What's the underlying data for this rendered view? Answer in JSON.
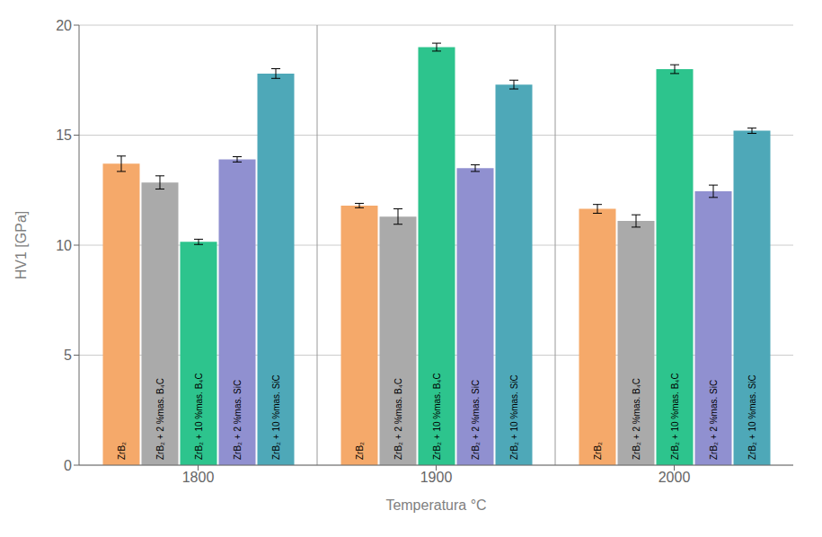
{
  "chart_data": {
    "type": "bar",
    "categories": [
      "1800",
      "1900",
      "2000"
    ],
    "series": [
      {
        "name": "ZrB₂",
        "color": "#F5A96A",
        "values": [
          13.7,
          11.8,
          11.65
        ],
        "errors": [
          0.35,
          0.1,
          0.2
        ]
      },
      {
        "name": "ZrB₂ + 2 %mas. B₄C",
        "color": "#AAAAAA",
        "values": [
          12.85,
          11.3,
          11.1
        ],
        "errors": [
          0.3,
          0.35,
          0.28
        ]
      },
      {
        "name": "ZrB₂ + 10 %mas. B₄C",
        "color": "#2DC48D",
        "values": [
          10.15,
          19.0,
          18.0
        ],
        "errors": [
          0.12,
          0.18,
          0.2
        ]
      },
      {
        "name": "ZrB₂ + 2 %mas. SiC",
        "color": "#9090D0",
        "values": [
          13.9,
          13.5,
          12.45
        ],
        "errors": [
          0.12,
          0.15,
          0.28
        ]
      },
      {
        "name": "ZrB₂ + 10 %mas. SiC",
        "color": "#4EA8B8",
        "values": [
          17.8,
          17.3,
          15.2
        ],
        "errors": [
          0.22,
          0.2,
          0.12
        ]
      }
    ],
    "xlabel": "Temperatura °C",
    "ylabel": "HV1 [GPa]",
    "ylim": [
      0,
      20
    ],
    "yticks": [
      0,
      5,
      10,
      15,
      20
    ],
    "grid": true
  }
}
